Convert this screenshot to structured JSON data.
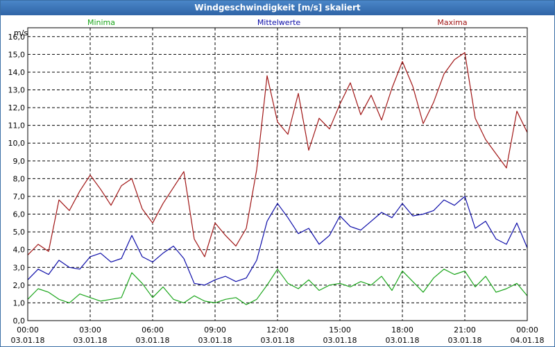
{
  "window": {
    "title": "Windgeschwindigkeit [m/s] skaliert"
  },
  "chart_data": {
    "type": "line",
    "title": "Windgeschwindigkeit [m/s] skaliert",
    "ylabel": "m/s",
    "xlabel": "",
    "ylim": [
      0,
      16.5
    ],
    "xlim": [
      0,
      24
    ],
    "yticks": [
      "0,0",
      "1,0",
      "2,0",
      "3,0",
      "4,0",
      "5,0",
      "6,0",
      "7,0",
      "8,0",
      "9,0",
      "10,0",
      "11,0",
      "12,0",
      "13,0",
      "14,0",
      "15,0",
      "16,0"
    ],
    "xticks": [
      {
        "time": "00:00",
        "date": "03.01.18"
      },
      {
        "time": "03:00",
        "date": "03.01.18"
      },
      {
        "time": "06:00",
        "date": "03.01.18"
      },
      {
        "time": "09:00",
        "date": "03.01.18"
      },
      {
        "time": "12:00",
        "date": "03.01.18"
      },
      {
        "time": "15:00",
        "date": "03.01.18"
      },
      {
        "time": "18:00",
        "date": "03.01.18"
      },
      {
        "time": "21:00",
        "date": "03.01.18"
      },
      {
        "time": "00:00",
        "date": "04.01.18"
      }
    ],
    "legend": [
      "Minima",
      "Mittelwerte",
      "Maxima"
    ],
    "series": [
      {
        "name": "Minima",
        "color": "#1aa51a",
        "x": [
          0,
          0.5,
          1,
          1.5,
          2,
          2.5,
          3,
          3.5,
          4,
          4.5,
          5,
          5.5,
          6,
          6.5,
          7,
          7.5,
          8,
          8.5,
          9,
          9.5,
          10,
          10.5,
          11,
          11.5,
          12,
          12.5,
          13,
          13.5,
          14,
          14.5,
          15,
          15.5,
          16,
          16.5,
          17,
          17.5,
          18,
          18.5,
          19,
          19.5,
          20,
          20.5,
          21,
          21.5,
          22,
          22.5,
          23,
          23.5,
          24
        ],
        "values": [
          1.2,
          1.8,
          1.6,
          1.2,
          1.0,
          1.5,
          1.3,
          1.1,
          1.2,
          1.3,
          2.7,
          2.1,
          1.3,
          1.9,
          1.2,
          1.0,
          1.4,
          1.1,
          1.0,
          1.2,
          1.3,
          0.9,
          1.2,
          2.0,
          2.9,
          2.1,
          1.8,
          2.3,
          1.7,
          2.0,
          2.1,
          1.9,
          2.2,
          2.0,
          2.5,
          1.7,
          2.8,
          2.2,
          1.6,
          2.4,
          2.9,
          2.6,
          2.8,
          1.9,
          2.5,
          1.6,
          1.8,
          2.1,
          1.4
        ]
      },
      {
        "name": "Mittelwerte",
        "color": "#0b0ba8",
        "x": [
          0,
          0.5,
          1,
          1.5,
          2,
          2.5,
          3,
          3.5,
          4,
          4.5,
          5,
          5.5,
          6,
          6.5,
          7,
          7.5,
          8,
          8.5,
          9,
          9.5,
          10,
          10.5,
          11,
          11.5,
          12,
          12.5,
          13,
          13.5,
          14,
          14.5,
          15,
          15.5,
          16,
          16.5,
          17,
          17.5,
          18,
          18.5,
          19,
          19.5,
          20,
          20.5,
          21,
          21.5,
          22,
          22.5,
          23,
          23.5,
          24
        ],
        "values": [
          2.3,
          2.9,
          2.6,
          3.4,
          3.0,
          2.9,
          3.6,
          3.8,
          3.3,
          3.5,
          4.8,
          3.6,
          3.3,
          3.8,
          4.2,
          3.5,
          2.1,
          2.0,
          2.3,
          2.5,
          2.2,
          2.4,
          3.4,
          5.6,
          6.6,
          5.8,
          4.9,
          5.2,
          4.3,
          4.8,
          5.9,
          5.3,
          5.1,
          5.6,
          6.1,
          5.8,
          6.6,
          5.9,
          6.0,
          6.2,
          6.8,
          6.5,
          7.0,
          5.2,
          5.6,
          4.6,
          4.3,
          5.5,
          4.1
        ]
      },
      {
        "name": "Maxima",
        "color": "#a01414",
        "x": [
          0,
          0.5,
          1,
          1.5,
          2,
          2.5,
          3,
          3.5,
          4,
          4.5,
          5,
          5.5,
          6,
          6.5,
          7,
          7.5,
          8,
          8.5,
          9,
          9.5,
          10,
          10.5,
          11,
          11.5,
          12,
          12.5,
          13,
          13.5,
          14,
          14.5,
          15,
          15.5,
          16,
          16.5,
          17,
          17.5,
          18,
          18.5,
          19,
          19.5,
          20,
          20.5,
          21,
          21.5,
          22,
          22.5,
          23,
          23.5,
          24
        ],
        "values": [
          3.7,
          4.3,
          3.9,
          6.8,
          6.2,
          7.3,
          8.2,
          7.4,
          6.5,
          7.6,
          8.0,
          6.3,
          5.5,
          6.6,
          7.5,
          8.4,
          4.6,
          3.6,
          5.5,
          4.8,
          4.2,
          5.2,
          8.5,
          13.8,
          11.2,
          10.5,
          12.8,
          9.6,
          11.4,
          10.8,
          12.2,
          13.4,
          11.6,
          12.7,
          11.3,
          13.1,
          14.6,
          13.2,
          11.1,
          12.3,
          13.9,
          14.7,
          15.1,
          11.4,
          10.2,
          9.4,
          8.6,
          11.8,
          10.6
        ]
      }
    ],
    "grid": true
  }
}
